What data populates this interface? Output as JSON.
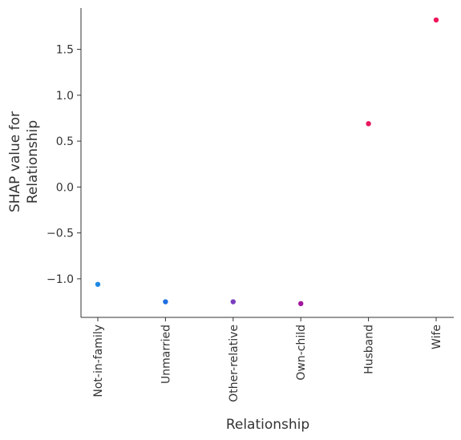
{
  "chart_data": {
    "type": "scatter",
    "xlabel": "Relationship",
    "ylabel_line1": "SHAP value for",
    "ylabel_line2": "Relationship",
    "categories": [
      "Not-in-family",
      "Unmarried",
      "Other-relative",
      "Own-child",
      "Husband",
      "Wife"
    ],
    "yticks": [
      "−1.0",
      "−0.5",
      "0.0",
      "0.5",
      "1.0",
      "1.5"
    ],
    "ytick_values": [
      -1.0,
      -0.5,
      0.0,
      0.5,
      1.0,
      1.5
    ],
    "ylim": [
      -1.42,
      1.95
    ],
    "grid": false,
    "points": [
      {
        "category": "Not-in-family",
        "y": -1.06,
        "color": "#1E88E5"
      },
      {
        "category": "Unmarried",
        "y": -1.25,
        "color": "#1E6FE0"
      },
      {
        "category": "Other-relative",
        "y": -1.25,
        "color": "#7A3DBF"
      },
      {
        "category": "Own-child",
        "y": -1.27,
        "color": "#A2169E"
      },
      {
        "category": "Husband",
        "y": 0.69,
        "color": "#E8175D"
      },
      {
        "category": "Wife",
        "y": 1.82,
        "color": "#F0145A"
      }
    ]
  }
}
